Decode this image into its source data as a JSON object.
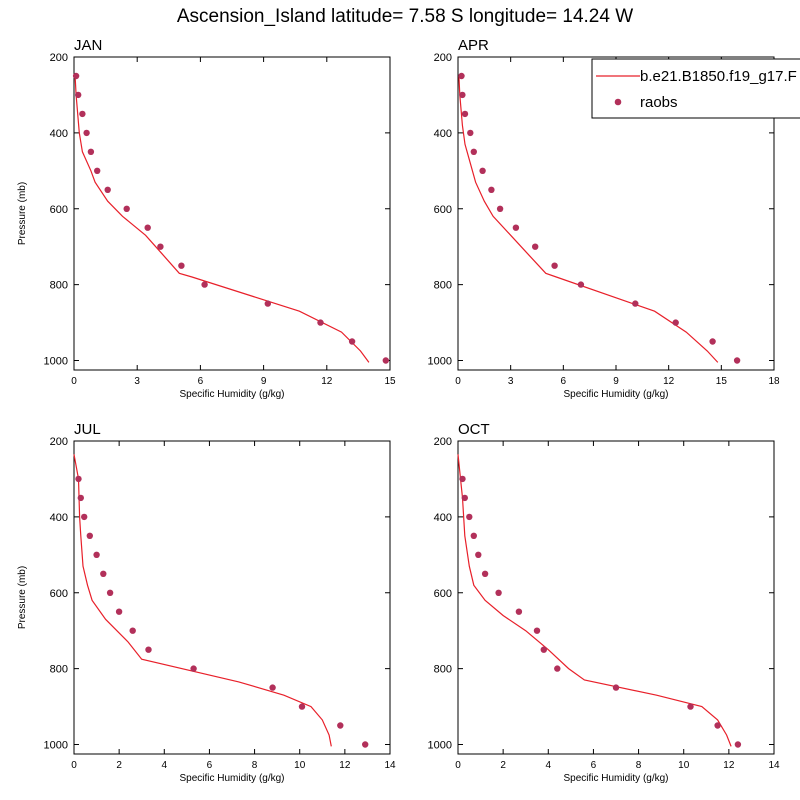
{
  "title": "Ascension_Island  latitude= 7.58 S longitude= 14.24 W",
  "legend": {
    "model_label": "b.e21.B1850.f19_g17.F",
    "obs_label": "raobs"
  },
  "colors": {
    "model_line": "#e8202a",
    "obs_marker": "#b2305a"
  },
  "chart_data": [
    {
      "type": "line",
      "panel_title": "JAN",
      "xlabel": "Specific Humidity (g/kg)",
      "ylabel": "Pressure (mb)",
      "xlim": [
        0,
        15
      ],
      "xticks": [
        0,
        3,
        6,
        9,
        12,
        15
      ],
      "ylim": [
        200,
        1025
      ],
      "yticks": [
        200,
        400,
        600,
        800,
        1000
      ],
      "y_reversed": true,
      "model": {
        "q": [
          14.0,
          13.6,
          12.7,
          10.7,
          5.6,
          5.0,
          4.2,
          3.4,
          2.3,
          1.6,
          1.0,
          0.8,
          0.4,
          0.25,
          0.1,
          0.05
        ],
        "p": [
          1005,
          975,
          925,
          870,
          780,
          770,
          720,
          670,
          620,
          580,
          530,
          500,
          450,
          400,
          300,
          250
        ]
      },
      "obs": {
        "q": [
          14.8,
          13.2,
          11.7,
          9.2,
          6.2,
          5.1,
          4.1,
          3.5,
          2.5,
          1.6,
          1.1,
          0.8,
          0.6,
          0.4,
          0.2,
          0.1
        ],
        "p": [
          1000,
          950,
          900,
          850,
          800,
          750,
          700,
          650,
          600,
          550,
          500,
          450,
          400,
          350,
          300,
          250
        ]
      }
    },
    {
      "type": "line",
      "panel_title": "APR",
      "xlabel": "Specific Humidity (g/kg)",
      "ylabel": "",
      "xlim": [
        0,
        18
      ],
      "xticks": [
        0,
        3,
        6,
        9,
        12,
        15,
        18
      ],
      "ylim": [
        200,
        1025
      ],
      "yticks": [
        200,
        400,
        600,
        800,
        1000
      ],
      "y_reversed": true,
      "model": {
        "q": [
          14.8,
          14.2,
          13.0,
          11.2,
          5.6,
          5.0,
          4.0,
          3.0,
          2.0,
          1.5,
          1.0,
          0.7,
          0.4,
          0.25,
          0.1,
          0.05
        ],
        "p": [
          1005,
          975,
          925,
          870,
          780,
          770,
          720,
          670,
          620,
          580,
          530,
          480,
          430,
          380,
          300,
          250
        ]
      },
      "obs": {
        "q": [
          15.9,
          14.5,
          12.4,
          10.1,
          7.0,
          5.5,
          4.4,
          3.3,
          2.4,
          1.9,
          1.4,
          0.9,
          0.7,
          0.4,
          0.25,
          0.2
        ],
        "p": [
          1000,
          950,
          900,
          850,
          800,
          750,
          700,
          650,
          600,
          550,
          500,
          450,
          400,
          350,
          300,
          250
        ]
      }
    },
    {
      "type": "line",
      "panel_title": "JUL",
      "xlabel": "Specific Humidity (g/kg)",
      "ylabel": "Pressure (mb)",
      "xlim": [
        0,
        14
      ],
      "xticks": [
        0,
        2,
        4,
        6,
        8,
        10,
        12,
        14
      ],
      "ylim": [
        200,
        1025
      ],
      "yticks": [
        200,
        400,
        600,
        800,
        1000
      ],
      "y_reversed": true,
      "model": {
        "q": [
          11.4,
          11.3,
          11.0,
          10.5,
          9.3,
          7.3,
          3.0,
          2.4,
          1.4,
          0.8,
          0.6,
          0.4,
          0.3,
          0.25,
          0.2,
          0.0
        ],
        "p": [
          1005,
          975,
          935,
          900,
          870,
          835,
          775,
          730,
          670,
          620,
          580,
          530,
          450,
          400,
          300,
          235
        ]
      },
      "obs": {
        "q": [
          12.9,
          11.8,
          10.1,
          8.8,
          5.3,
          3.3,
          2.6,
          2.0,
          1.6,
          1.3,
          1.0,
          0.7,
          0.45,
          0.3,
          0.2
        ],
        "p": [
          1000,
          950,
          900,
          850,
          800,
          750,
          700,
          650,
          600,
          550,
          500,
          450,
          400,
          350,
          300
        ]
      }
    },
    {
      "type": "line",
      "panel_title": "OCT",
      "xlabel": "Specific Humidity (g/kg)",
      "ylabel": "",
      "xlim": [
        0,
        14
      ],
      "xticks": [
        0,
        2,
        4,
        6,
        8,
        10,
        12,
        14
      ],
      "ylim": [
        200,
        1025
      ],
      "yticks": [
        200,
        400,
        600,
        800,
        1000
      ],
      "y_reversed": true,
      "model": {
        "q": [
          12.1,
          11.9,
          11.5,
          10.8,
          8.8,
          5.6,
          4.9,
          4.0,
          3.0,
          2.0,
          1.2,
          0.7,
          0.5,
          0.3,
          0.2,
          0.0
        ],
        "p": [
          1005,
          975,
          935,
          900,
          870,
          830,
          800,
          750,
          700,
          660,
          620,
          580,
          530,
          450,
          350,
          235
        ]
      },
      "obs": {
        "q": [
          12.4,
          11.5,
          10.3,
          7.0,
          4.4,
          3.8,
          3.5,
          2.7,
          1.8,
          1.2,
          0.9,
          0.7,
          0.5,
          0.3,
          0.2
        ],
        "p": [
          1000,
          950,
          900,
          850,
          800,
          750,
          700,
          650,
          600,
          550,
          500,
          450,
          400,
          350,
          300
        ]
      }
    }
  ]
}
